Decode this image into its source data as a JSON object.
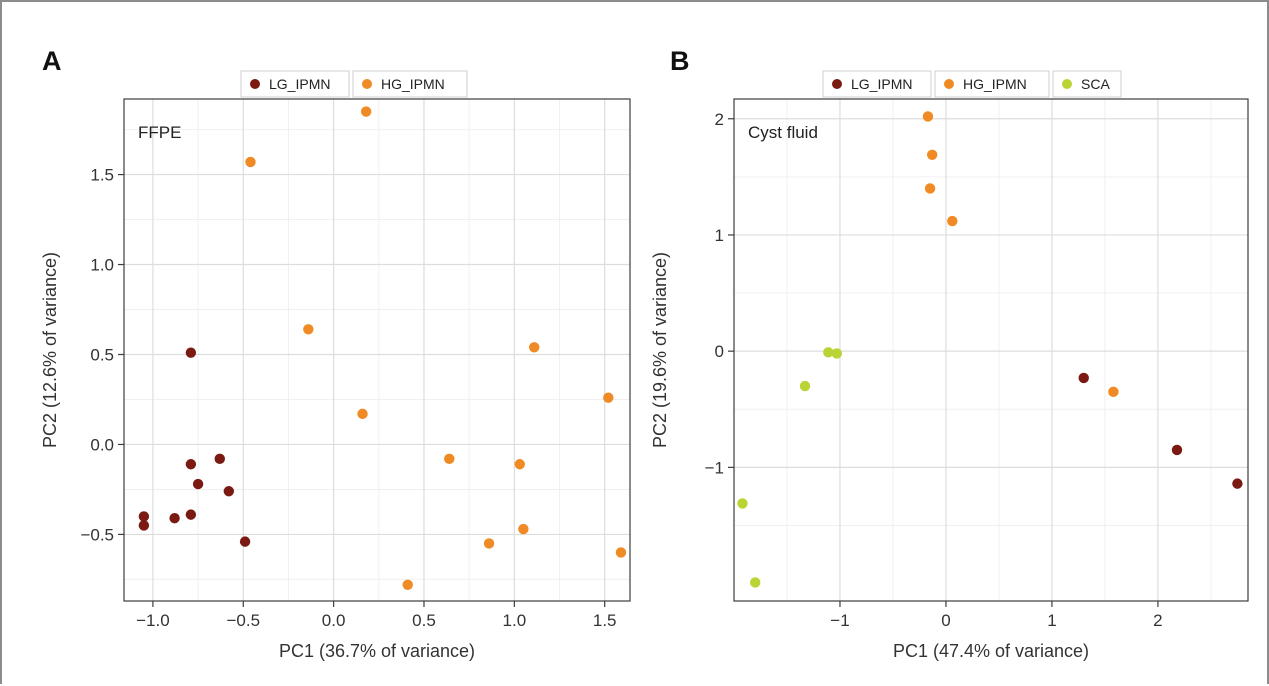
{
  "colors": {
    "LG_IPMN": "#7a1a12",
    "HG_IPMN": "#f08a24",
    "SCA": "#b9d535"
  },
  "chart_data": [
    {
      "type": "scatter",
      "panel": "A",
      "inset_label": "FFPE",
      "xlabel": "PC1 (36.7% of variance)",
      "ylabel": "PC2 (12.6% of variance)",
      "xlim": [
        -1.16,
        1.64
      ],
      "ylim": [
        -0.87,
        1.92
      ],
      "xticks": [
        -1.0,
        -0.5,
        0.0,
        0.5,
        1.0,
        1.5
      ],
      "xtick_labels": [
        "−1.0",
        "−0.5",
        "0.0",
        "0.5",
        "1.0",
        "1.5"
      ],
      "yticks": [
        -0.5,
        0.0,
        0.5,
        1.0,
        1.5
      ],
      "ytick_labels": [
        "−0.5",
        "0.0",
        "0.5",
        "1.0",
        "1.5"
      ],
      "legend": [
        "LG_IPMN",
        "HG_IPMN"
      ],
      "legend_position": "top",
      "grid": true,
      "series": [
        {
          "name": "LG_IPMN",
          "points": [
            [
              -0.79,
              0.51
            ],
            [
              -0.79,
              -0.11
            ],
            [
              -0.63,
              -0.08
            ],
            [
              -0.75,
              -0.22
            ],
            [
              -0.58,
              -0.26
            ],
            [
              -0.79,
              -0.39
            ],
            [
              -0.88,
              -0.41
            ],
            [
              -1.05,
              -0.4
            ],
            [
              -1.05,
              -0.45
            ],
            [
              -0.49,
              -0.54
            ]
          ]
        },
        {
          "name": "HG_IPMN",
          "points": [
            [
              0.18,
              1.85
            ],
            [
              -0.46,
              1.57
            ],
            [
              -0.14,
              0.64
            ],
            [
              1.11,
              0.54
            ],
            [
              1.52,
              0.26
            ],
            [
              0.16,
              0.17
            ],
            [
              0.64,
              -0.08
            ],
            [
              1.03,
              -0.11
            ],
            [
              1.05,
              -0.47
            ],
            [
              0.86,
              -0.55
            ],
            [
              1.59,
              -0.6
            ],
            [
              0.41,
              -0.78
            ]
          ]
        }
      ]
    },
    {
      "type": "scatter",
      "panel": "B",
      "inset_label": "Cyst fluid",
      "xlabel": "PC1 (47.4% of variance)",
      "ylabel": "PC2 (19.6% of variance)",
      "xlim": [
        -2.0,
        2.85
      ],
      "ylim": [
        -2.15,
        2.17
      ],
      "xticks": [
        -1,
        0,
        1,
        2
      ],
      "xtick_labels": [
        "−1",
        "0",
        "1",
        "2"
      ],
      "yticks": [
        -1,
        0,
        1,
        2
      ],
      "ytick_labels": [
        "−1",
        "0",
        "1",
        "2"
      ],
      "legend": [
        "LG_IPMN",
        "HG_IPMN",
        "SCA"
      ],
      "legend_position": "top",
      "grid": true,
      "series": [
        {
          "name": "LG_IPMN",
          "points": [
            [
              1.3,
              -0.23
            ],
            [
              2.18,
              -0.85
            ],
            [
              2.75,
              -1.14
            ]
          ]
        },
        {
          "name": "HG_IPMN",
          "points": [
            [
              -0.17,
              2.02
            ],
            [
              -0.13,
              1.69
            ],
            [
              -0.15,
              1.4
            ],
            [
              0.06,
              1.12
            ],
            [
              1.58,
              -0.35
            ]
          ]
        },
        {
          "name": "SCA",
          "points": [
            [
              -1.11,
              -0.01
            ],
            [
              -1.03,
              -0.02
            ],
            [
              -1.33,
              -0.3
            ],
            [
              -1.92,
              -1.31
            ],
            [
              -1.8,
              -1.99
            ]
          ]
        }
      ]
    }
  ]
}
